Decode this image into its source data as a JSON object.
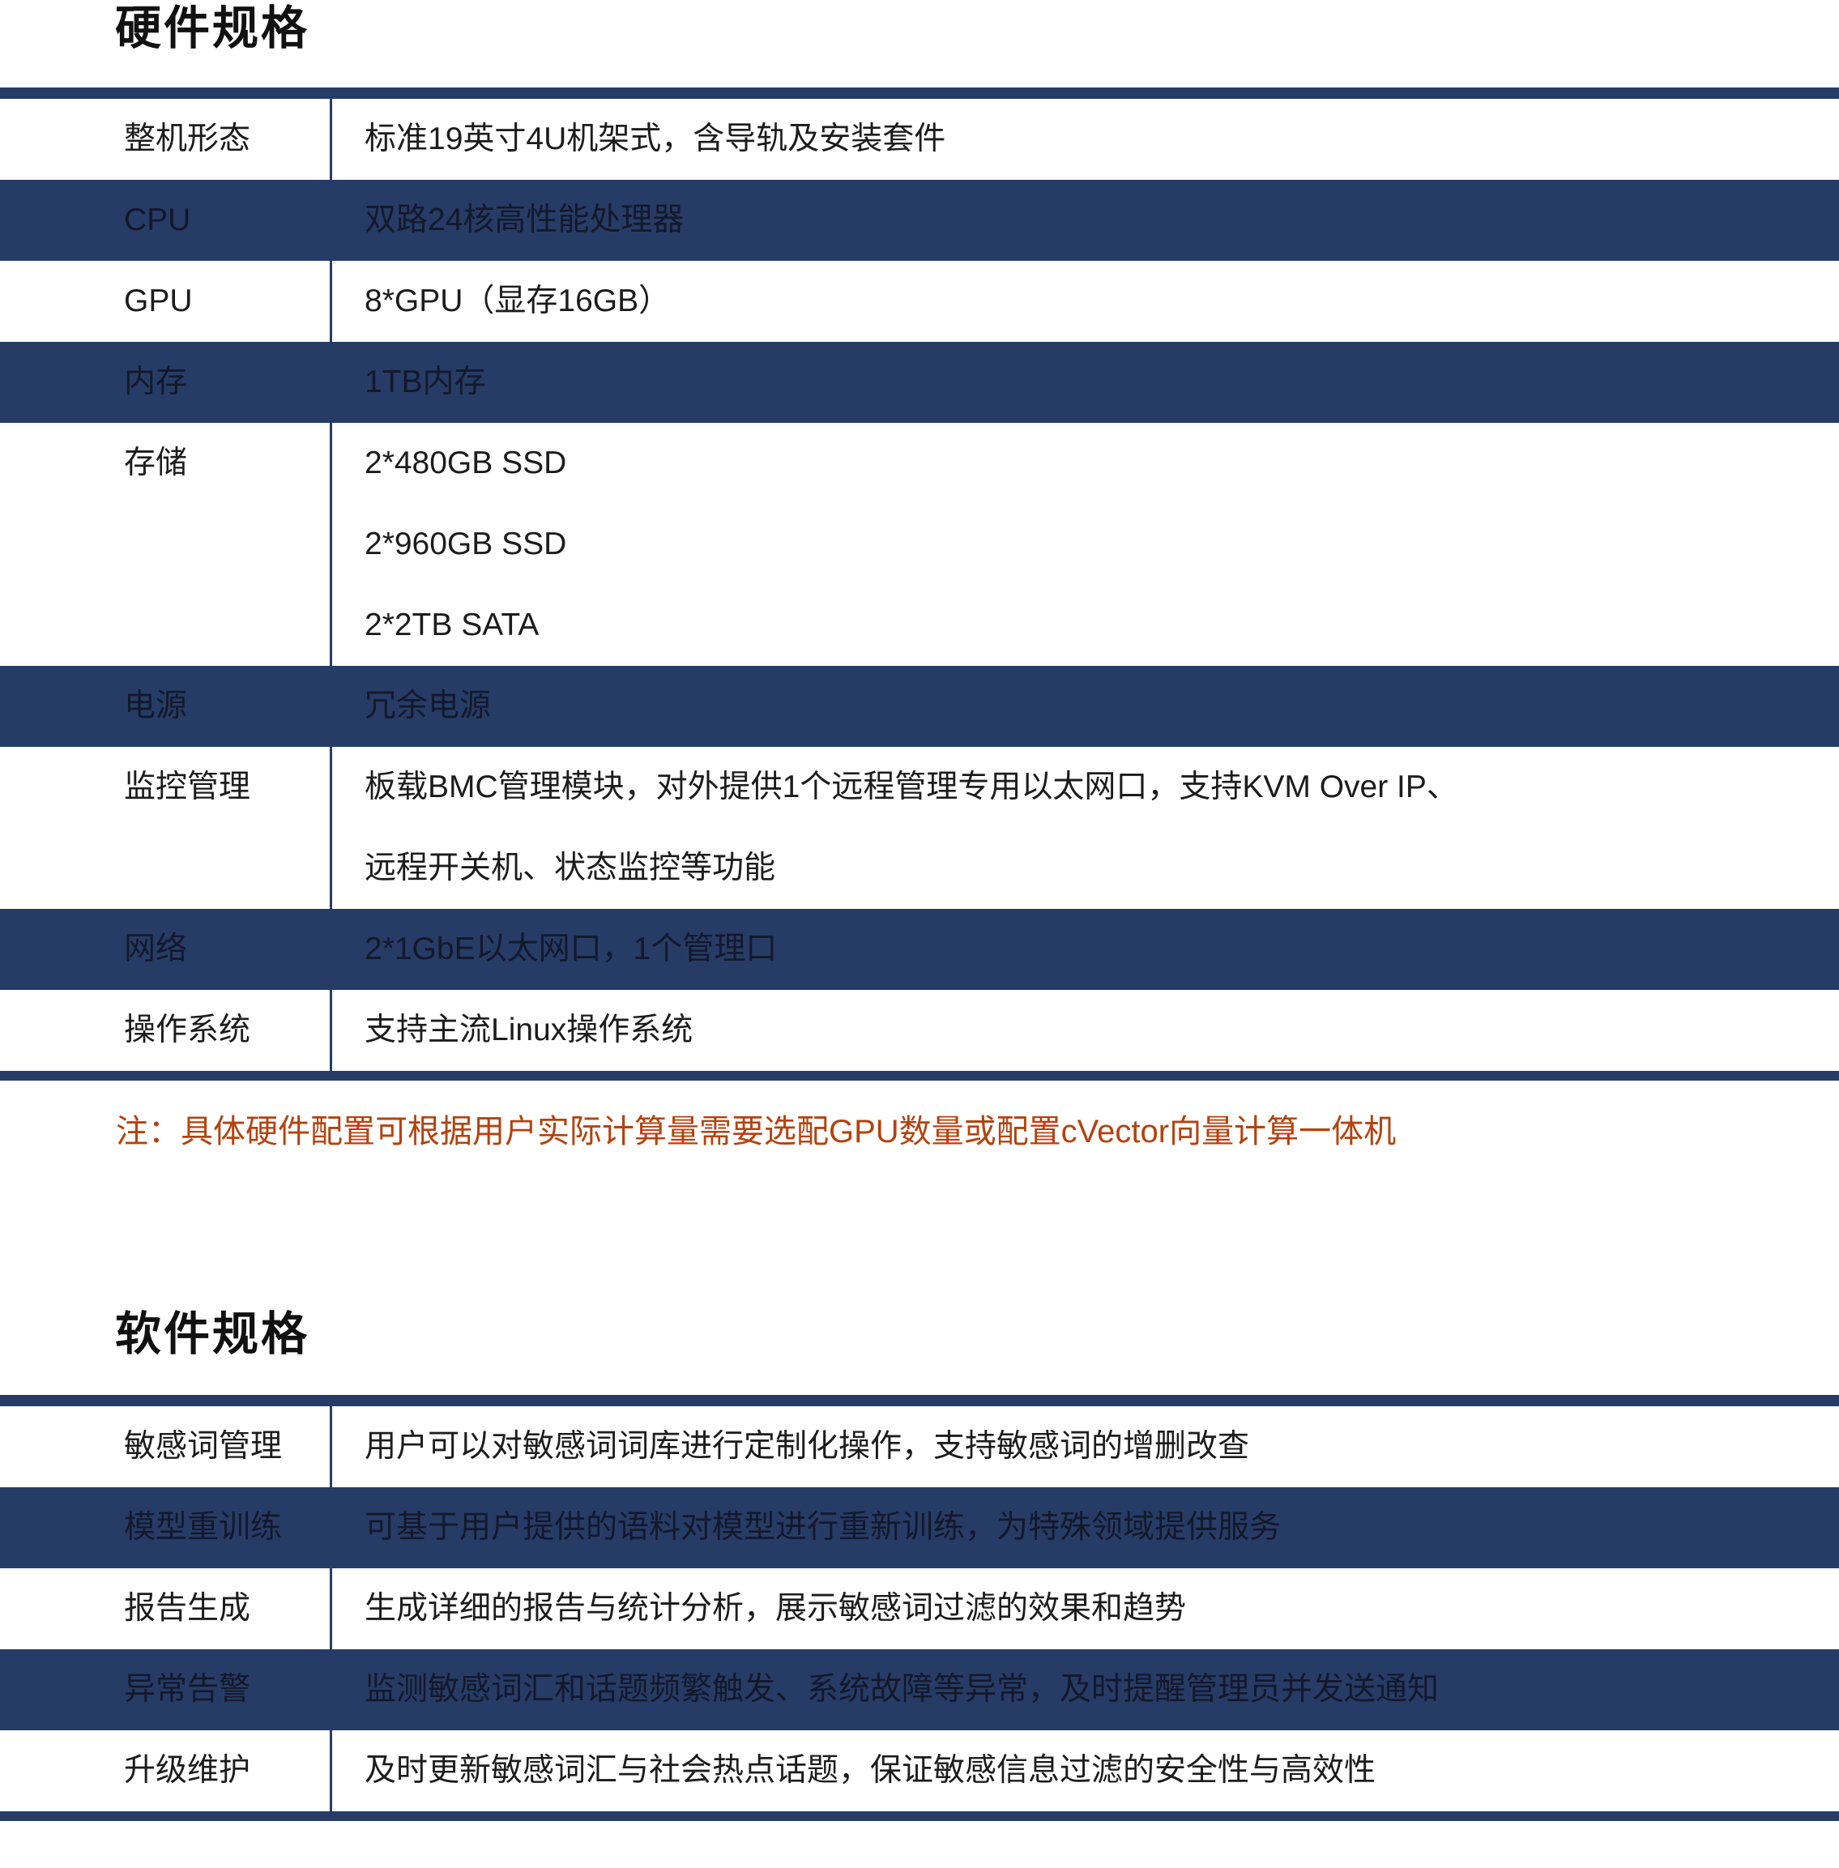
{
  "colors": {
    "navy": "#263C66",
    "note_text": "#B5420E",
    "row_text_on_white": "#1C1C1C",
    "row_text_on_navy": "#14182B",
    "title_text": "#111111",
    "page_background": "#FFFFFF"
  },
  "sections": [
    {
      "title": "硬件规格",
      "note": "注：具体硬件配置可根据用户实际计算量需要选配GPU数量或配置cVector向量计算一体机",
      "rows": [
        {
          "label": "整机形态",
          "lines": [
            "标准19英寸4U机架式，含导轨及安装套件"
          ]
        },
        {
          "label": "CPU",
          "lines": [
            "双路24核高性能处理器"
          ]
        },
        {
          "label": "GPU",
          "lines": [
            "8*GPU（显存16GB）"
          ]
        },
        {
          "label": "内存",
          "lines": [
            "1TB内存"
          ]
        },
        {
          "label": "存储",
          "lines": [
            "2*480GB SSD",
            "2*960GB SSD",
            "2*2TB SATA"
          ]
        },
        {
          "label": "电源",
          "lines": [
            "冗余电源"
          ]
        },
        {
          "label": "监控管理",
          "lines": [
            "板载BMC管理模块，对外提供1个远程管理专用以太网口，支持KVM Over IP、",
            "远程开关机、状态监控等功能"
          ]
        },
        {
          "label": "网络",
          "lines": [
            "2*1GbE以太网口，1个管理口"
          ]
        },
        {
          "label": "操作系统",
          "lines": [
            "支持主流Linux操作系统"
          ]
        }
      ]
    },
    {
      "title": "软件规格",
      "note": "",
      "rows": [
        {
          "label": "敏感词管理",
          "lines": [
            "用户可以对敏感词词库进行定制化操作，支持敏感词的增删改查"
          ]
        },
        {
          "label": "模型重训练",
          "lines": [
            "可基于用户提供的语料对模型进行重新训练，为特殊领域提供服务"
          ]
        },
        {
          "label": "报告生成",
          "lines": [
            "生成详细的报告与统计分析，展示敏感词过滤的效果和趋势"
          ]
        },
        {
          "label": "异常告警",
          "lines": [
            "监测敏感词汇和话题频繁触发、系统故障等异常，及时提醒管理员并发送通知"
          ]
        },
        {
          "label": "升级维护",
          "lines": [
            "及时更新敏感词汇与社会热点话题，保证敏感信息过滤的安全性与高效性"
          ]
        }
      ]
    }
  ]
}
